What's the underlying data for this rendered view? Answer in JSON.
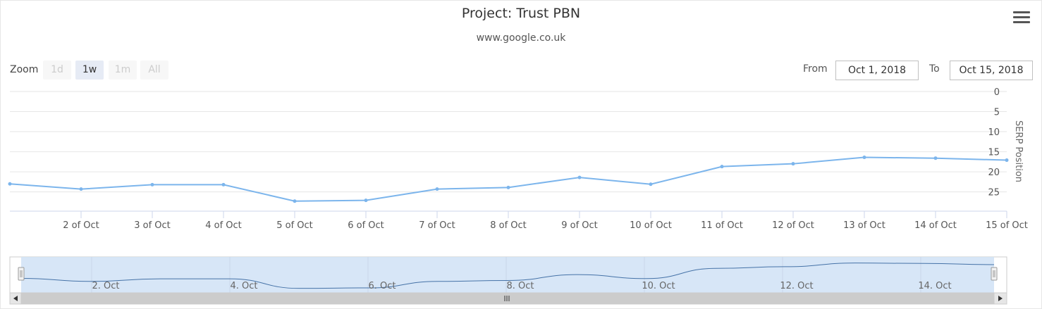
{
  "chart": {
    "title": "Project: Trust PBN",
    "subtitle": "www.google.co.uk",
    "menu_icon": "hamburger-menu-icon"
  },
  "range_selector": {
    "zoom_label": "Zoom",
    "buttons": [
      {
        "label": "1d",
        "active": false
      },
      {
        "label": "1w",
        "active": true
      },
      {
        "label": "1m",
        "active": false
      },
      {
        "label": "All",
        "active": false
      }
    ],
    "from_label": "From",
    "from_value": "Oct 1, 2018",
    "to_label": "To",
    "to_value": "Oct 15, 2018"
  },
  "navigator": {
    "tick_labels": [
      "2. Oct",
      "4. Oct",
      "6. Oct",
      "8. Oct",
      "10. Oct",
      "12. Oct",
      "14. Oct"
    ],
    "scroll_handle_icon": "scrollbar-grip-icon"
  },
  "colors": {
    "series": "#7cb5ec",
    "navigator_fill": "#d3e3f6",
    "navigator_line": "#4572a7",
    "grid": "#e6e6e6"
  },
  "chart_data": {
    "type": "line",
    "title": "Project: Trust PBN",
    "subtitle": "www.google.co.uk",
    "xlabel": "",
    "ylabel": "SERP Position",
    "y_reversed": true,
    "y_axis_side": "right",
    "ylim": [
      0,
      30
    ],
    "yticks": [
      0,
      5,
      10,
      15,
      20,
      25
    ],
    "x_tick_labels": [
      "2 of Oct",
      "3 of Oct",
      "4 of Oct",
      "5 of Oct",
      "6 of Oct",
      "7 of Oct",
      "8 of Oct",
      "9 of Oct",
      "10 of Oct",
      "11 of Oct",
      "12 of Oct",
      "13 of Oct",
      "14 of Oct",
      "15 of Oct"
    ],
    "grid": true,
    "legend": "none",
    "x": [
      "2018-10-01",
      "2018-10-02",
      "2018-10-03",
      "2018-10-04",
      "2018-10-05",
      "2018-10-06",
      "2018-10-07",
      "2018-10-08",
      "2018-10-09",
      "2018-10-10",
      "2018-10-11",
      "2018-10-12",
      "2018-10-13",
      "2018-10-14",
      "2018-10-15"
    ],
    "values": [
      23,
      24.3,
      23.2,
      23.2,
      27.3,
      27.1,
      24.3,
      23.9,
      21.4,
      23.1,
      18.7,
      18,
      16.4,
      16.6,
      17.1
    ]
  }
}
